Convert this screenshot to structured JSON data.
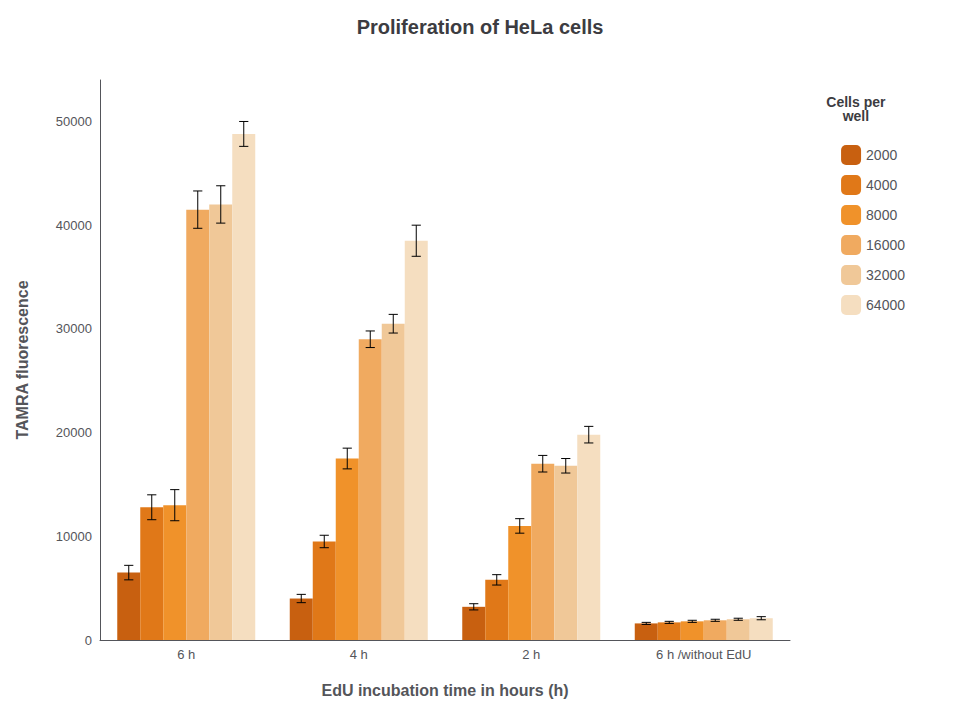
{
  "chart_data": {
    "type": "bar",
    "title": "Proliferation of HeLa cells",
    "xlabel": "EdU incubation time in hours (h)",
    "ylabel": "TAMRA fluorescence",
    "categories": [
      "6 h",
      "4 h",
      "2 h",
      "6 h /without EdU"
    ],
    "series": [
      {
        "name": "2000",
        "color": "#C86010",
        "values": [
          6500,
          4000,
          3200,
          1600
        ],
        "errors": [
          700,
          400,
          300,
          100
        ]
      },
      {
        "name": "4000",
        "color": "#E07818",
        "values": [
          12800,
          9500,
          5800,
          1700
        ],
        "errors": [
          1200,
          600,
          500,
          100
        ]
      },
      {
        "name": "8000",
        "color": "#F0922A",
        "values": [
          13000,
          17500,
          11000,
          1800
        ],
        "errors": [
          1500,
          1000,
          700,
          100
        ]
      },
      {
        "name": "16000",
        "color": "#F0AA60",
        "values": [
          41500,
          29000,
          17000,
          1900
        ],
        "errors": [
          1800,
          800,
          800,
          100
        ]
      },
      {
        "name": "32000",
        "color": "#F0C898",
        "values": [
          42000,
          30500,
          16800,
          2000
        ],
        "errors": [
          1800,
          900,
          700,
          100
        ]
      },
      {
        "name": "64000",
        "color": "#F5DEC0",
        "values": [
          48800,
          38500,
          19800,
          2100
        ],
        "errors": [
          1200,
          1500,
          800,
          150
        ]
      }
    ],
    "ylim": [
      0,
      54000
    ],
    "yticks": [
      0,
      10000,
      20000,
      30000,
      40000,
      50000
    ],
    "legend": "right",
    "legend_title": "Cells per\nwell",
    "grid": false
  }
}
